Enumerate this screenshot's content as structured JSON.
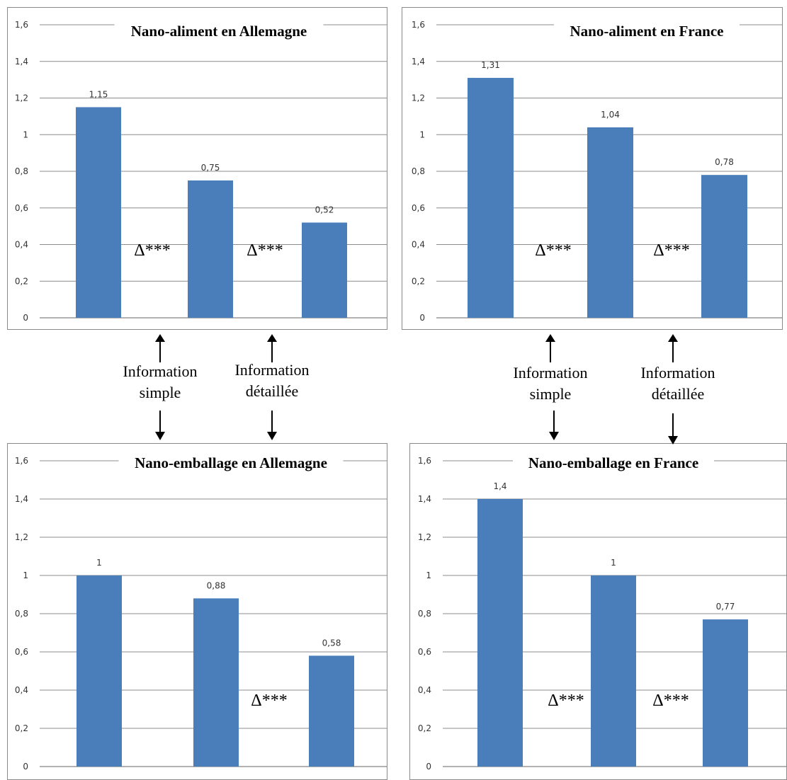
{
  "colors": {
    "bar": "#4a7ebb",
    "grid": "#8c8c8c",
    "axis": "#666666",
    "text": "#333333"
  },
  "ticks": [
    "0",
    "0,2",
    "0,4",
    "0,6",
    "0,8",
    "1",
    "1,2",
    "1,4",
    "1,6"
  ],
  "delta_label": "Δ***",
  "annotations": {
    "simple_line1": "Information",
    "simple_line2": "simple",
    "detailed_line1": "Information",
    "detailed_line2": "détaillée"
  },
  "chart_data": [
    {
      "type": "bar",
      "title": "Nano-aliment en Allemagne",
      "values": [
        1.15,
        0.75,
        0.52
      ],
      "value_labels": [
        "1,15",
        "0,75",
        "0,52"
      ],
      "ylim": [
        0,
        1.6
      ],
      "significance": [
        "Δ***",
        "Δ***"
      ]
    },
    {
      "type": "bar",
      "title": "Nano-aliment en France",
      "values": [
        1.31,
        1.04,
        0.78
      ],
      "value_labels": [
        "1,31",
        "1,04",
        "0,78"
      ],
      "ylim": [
        0,
        1.6
      ],
      "significance": [
        "Δ***",
        "Δ***"
      ]
    },
    {
      "type": "bar",
      "title": "Nano-emballage en Allemagne",
      "values": [
        1,
        0.88,
        0.58
      ],
      "value_labels": [
        "1",
        "0,88",
        "0,58"
      ],
      "ylim": [
        0,
        1.6
      ],
      "significance": [
        "",
        "Δ***"
      ]
    },
    {
      "type": "bar",
      "title": "Nano-emballage en France",
      "values": [
        1.4,
        1,
        0.77
      ],
      "value_labels": [
        "1,4",
        "1",
        "0,77"
      ],
      "ylim": [
        0,
        1.6
      ],
      "significance": [
        "Δ***",
        "Δ***"
      ]
    }
  ]
}
